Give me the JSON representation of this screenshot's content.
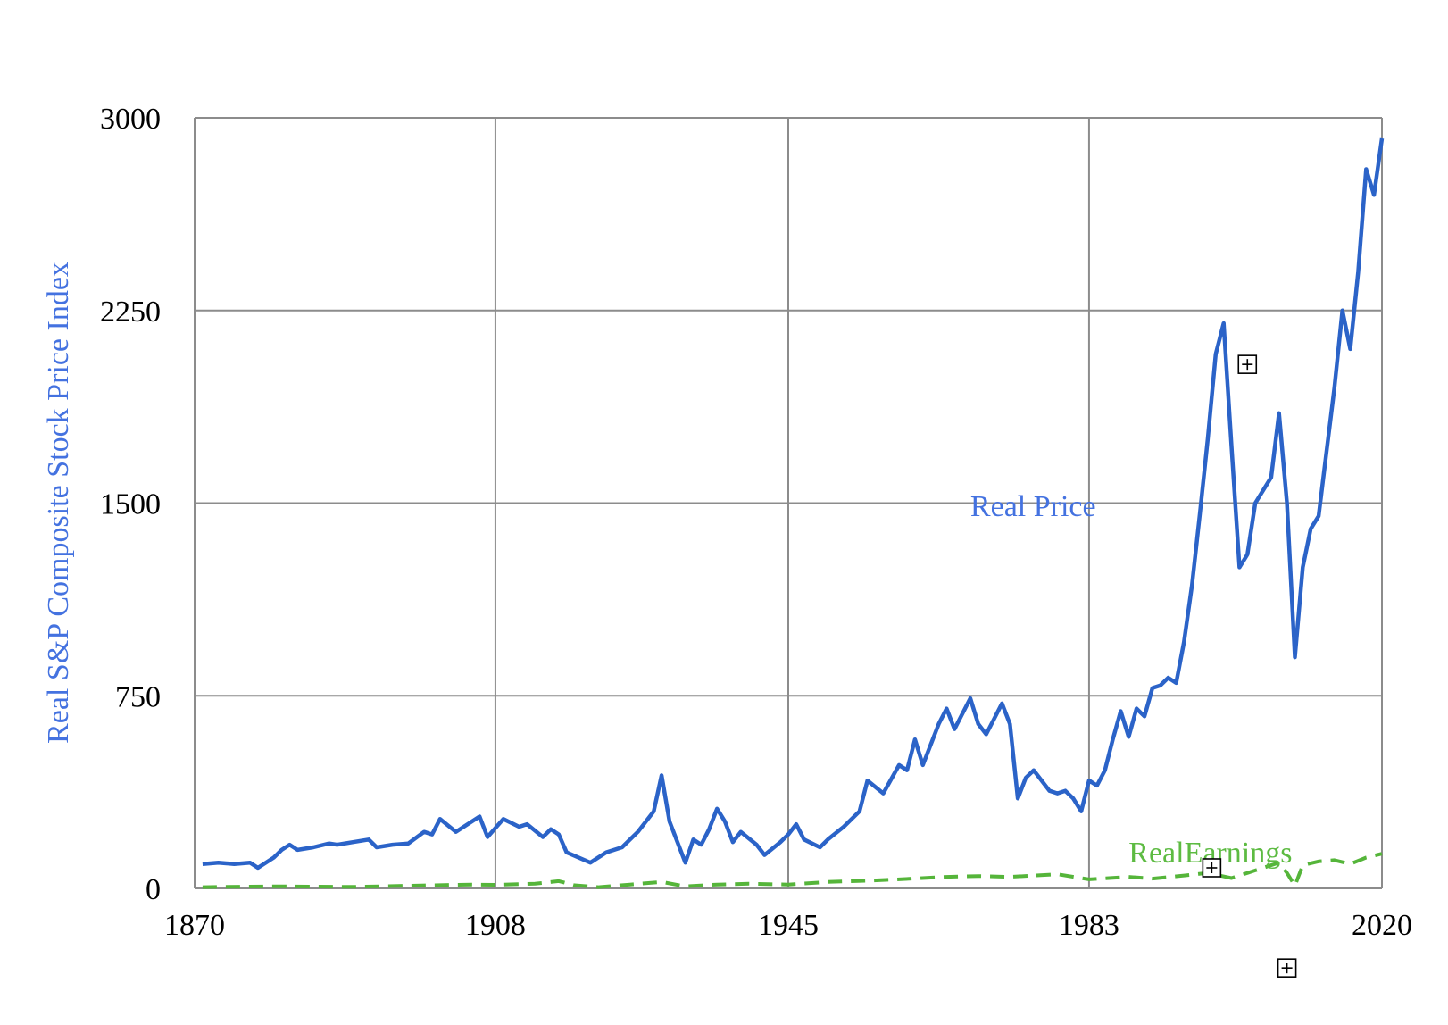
{
  "chart_data": {
    "type": "line",
    "ylabel": "Real S&P Composite Stock Price Index",
    "xlim": [
      1870,
      2020
    ],
    "ylim": [
      0,
      3000
    ],
    "x_ticks": [
      1870,
      1908,
      1945,
      1983,
      2020
    ],
    "x_tick_labels": [
      "1870",
      "1908",
      "1945",
      "1983",
      "2020"
    ],
    "y_ticks": [
      0,
      750,
      1500,
      2250,
      3000
    ],
    "y_tick_labels": [
      "0",
      "750",
      "1500",
      "2250",
      "3000"
    ],
    "grid": true,
    "colors": {
      "price": "#2b63c8",
      "earnings": "#55b53a",
      "ylabel": "#4472e0",
      "price_label": "#4472e0",
      "earnings_label": "#5dbb42",
      "grid": "#8c8c8c"
    },
    "series": [
      {
        "name": "Real Price",
        "style": "solid",
        "points": [
          [
            1871,
            95
          ],
          [
            1873,
            100
          ],
          [
            1875,
            95
          ],
          [
            1877,
            100
          ],
          [
            1878,
            80
          ],
          [
            1880,
            120
          ],
          [
            1881,
            150
          ],
          [
            1882,
            170
          ],
          [
            1883,
            150
          ],
          [
            1885,
            160
          ],
          [
            1887,
            175
          ],
          [
            1888,
            170
          ],
          [
            1890,
            180
          ],
          [
            1892,
            190
          ],
          [
            1893,
            160
          ],
          [
            1895,
            170
          ],
          [
            1897,
            175
          ],
          [
            1899,
            220
          ],
          [
            1900,
            210
          ],
          [
            1901,
            270
          ],
          [
            1903,
            220
          ],
          [
            1905,
            260
          ],
          [
            1906,
            280
          ],
          [
            1907,
            200
          ],
          [
            1909,
            270
          ],
          [
            1911,
            240
          ],
          [
            1912,
            250
          ],
          [
            1914,
            200
          ],
          [
            1915,
            230
          ],
          [
            1916,
            210
          ],
          [
            1917,
            140
          ],
          [
            1920,
            100
          ],
          [
            1922,
            140
          ],
          [
            1924,
            160
          ],
          [
            1926,
            220
          ],
          [
            1928,
            300
          ],
          [
            1929,
            440
          ],
          [
            1930,
            260
          ],
          [
            1932,
            100
          ],
          [
            1933,
            190
          ],
          [
            1934,
            170
          ],
          [
            1935,
            230
          ],
          [
            1936,
            310
          ],
          [
            1937,
            260
          ],
          [
            1938,
            180
          ],
          [
            1939,
            220
          ],
          [
            1941,
            170
          ],
          [
            1942,
            130
          ],
          [
            1944,
            180
          ],
          [
            1945,
            210
          ],
          [
            1946,
            250
          ],
          [
            1947,
            190
          ],
          [
            1949,
            160
          ],
          [
            1950,
            190
          ],
          [
            1952,
            240
          ],
          [
            1954,
            300
          ],
          [
            1955,
            420
          ],
          [
            1957,
            370
          ],
          [
            1959,
            480
          ],
          [
            1960,
            460
          ],
          [
            1961,
            580
          ],
          [
            1962,
            480
          ],
          [
            1964,
            640
          ],
          [
            1965,
            700
          ],
          [
            1966,
            620
          ],
          [
            1968,
            740
          ],
          [
            1969,
            640
          ],
          [
            1970,
            600
          ],
          [
            1972,
            720
          ],
          [
            1973,
            640
          ],
          [
            1974,
            350
          ],
          [
            1975,
            430
          ],
          [
            1976,
            460
          ],
          [
            1978,
            380
          ],
          [
            1979,
            370
          ],
          [
            1980,
            380
          ],
          [
            1981,
            350
          ],
          [
            1982,
            300
          ],
          [
            1983,
            420
          ],
          [
            1984,
            400
          ],
          [
            1985,
            460
          ],
          [
            1986,
            580
          ],
          [
            1987,
            690
          ],
          [
            1988,
            590
          ],
          [
            1989,
            700
          ],
          [
            1990,
            670
          ],
          [
            1991,
            780
          ],
          [
            1992,
            790
          ],
          [
            1993,
            820
          ],
          [
            1994,
            800
          ],
          [
            1995,
            960
          ],
          [
            1996,
            1180
          ],
          [
            1997,
            1460
          ],
          [
            1998,
            1750
          ],
          [
            1999,
            2080
          ],
          [
            2000,
            2200
          ],
          [
            2001,
            1720
          ],
          [
            2002,
            1250
          ],
          [
            2003,
            1300
          ],
          [
            2004,
            1500
          ],
          [
            2005,
            1550
          ],
          [
            2006,
            1600
          ],
          [
            2007,
            1850
          ],
          [
            2008,
            1500
          ],
          [
            2009,
            900
          ],
          [
            2010,
            1250
          ],
          [
            2011,
            1400
          ],
          [
            2012,
            1450
          ],
          [
            2013,
            1700
          ],
          [
            2014,
            1950
          ],
          [
            2015,
            2250
          ],
          [
            2016,
            2100
          ],
          [
            2017,
            2400
          ],
          [
            2018,
            2800
          ],
          [
            2019,
            2700
          ],
          [
            2020,
            2920
          ]
        ]
      },
      {
        "name": "RealEarnings",
        "style": "dashed",
        "points": [
          [
            1871,
            5
          ],
          [
            1880,
            8
          ],
          [
            1890,
            6
          ],
          [
            1900,
            12
          ],
          [
            1905,
            15
          ],
          [
            1908,
            14
          ],
          [
            1913,
            18
          ],
          [
            1916,
            28
          ],
          [
            1918,
            12
          ],
          [
            1921,
            5
          ],
          [
            1925,
            15
          ],
          [
            1929,
            25
          ],
          [
            1932,
            8
          ],
          [
            1936,
            15
          ],
          [
            1940,
            18
          ],
          [
            1945,
            15
          ],
          [
            1950,
            25
          ],
          [
            1955,
            30
          ],
          [
            1959,
            35
          ],
          [
            1965,
            45
          ],
          [
            1969,
            48
          ],
          [
            1973,
            45
          ],
          [
            1979,
            55
          ],
          [
            1983,
            35
          ],
          [
            1988,
            45
          ],
          [
            1991,
            38
          ],
          [
            1995,
            50
          ],
          [
            1998,
            60
          ],
          [
            2001,
            40
          ],
          [
            2004,
            70
          ],
          [
            2007,
            100
          ],
          [
            2008,
            60
          ],
          [
            2009,
            10
          ],
          [
            2010,
            90
          ],
          [
            2012,
            105
          ],
          [
            2014,
            110
          ],
          [
            2016,
            95
          ],
          [
            2018,
            120
          ],
          [
            2020,
            135
          ]
        ]
      }
    ],
    "annotations": [
      {
        "text": "Real Price",
        "x": 1968,
        "y": 1450,
        "series": "Real Price"
      },
      {
        "text": "RealEarnings",
        "x": 1988,
        "y": 100,
        "series": "RealEarnings"
      }
    ],
    "markers": [
      {
        "x": 2003,
        "y": 2040
      },
      {
        "x": 1998.5,
        "y": 80
      },
      {
        "x": 2008,
        "y": -310
      }
    ]
  }
}
